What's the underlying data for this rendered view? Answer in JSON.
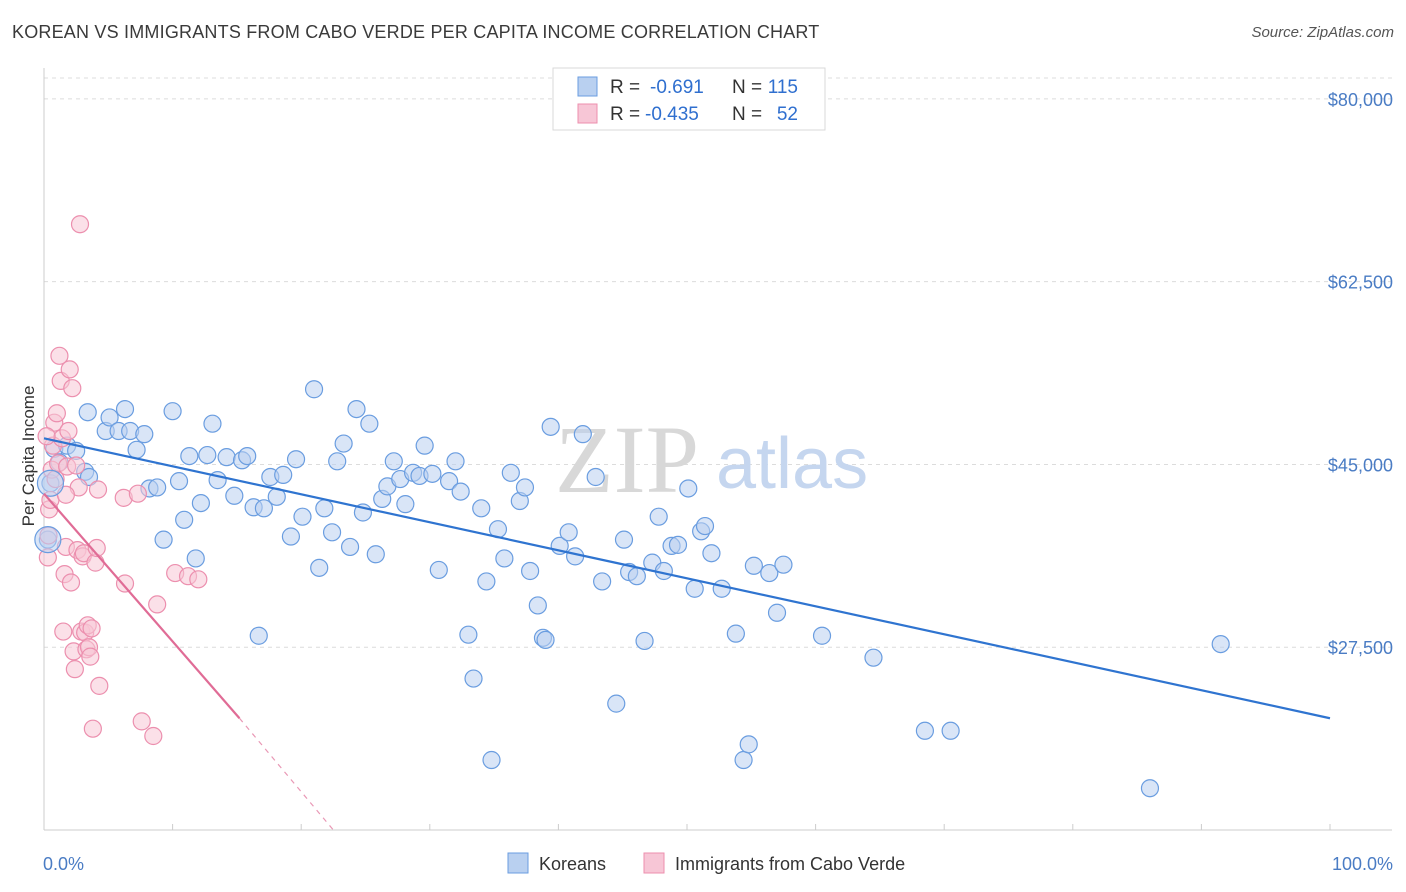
{
  "title": "KOREAN VS IMMIGRANTS FROM CABO VERDE PER CAPITA INCOME CORRELATION CHART",
  "source": "Source: ZipAtlas.com",
  "watermark": {
    "zip": "ZIP",
    "atlas": "atlas"
  },
  "legend_top": [
    {
      "r_label": "R =",
      "r_value": "-0.691",
      "n_label": "N =",
      "n_value": "115",
      "color": "#7aa8e6",
      "fill": "#bcd3f3"
    },
    {
      "r_label": "R =",
      "r_value": "-0.435",
      "n_label": "N =",
      "n_value": "52",
      "color": "#eb8cab",
      "fill": "#f7c3d4"
    }
  ],
  "chart_data": {
    "type": "scatter",
    "title": "KOREAN VS IMMIGRANTS FROM CABO VERDE PER CAPITA INCOME CORRELATION CHART",
    "xlabel": "",
    "ylabel": "Per Capita Income",
    "xlim": [
      0,
      100
    ],
    "ylim": [
      10000,
      82000
    ],
    "x_tick_labels": [
      "0.0%",
      "100.0%"
    ],
    "y_ticks": [
      27500,
      45000,
      62500,
      80000
    ],
    "y_tick_labels": [
      "$27,500",
      "$45,000",
      "$62,500",
      "$80,000"
    ],
    "grid": true,
    "legend_position": "bottom",
    "series": [
      {
        "name": "Koreans",
        "color": "#6a9de0",
        "fill": "#b9d0f0",
        "line_color": "#2f74d0",
        "trend": {
          "x": [
            0,
            100
          ],
          "y": [
            47500,
            20700
          ]
        },
        "points": [
          [
            0.3,
            37800
          ],
          [
            0.5,
            43200
          ],
          [
            0.8,
            46500
          ],
          [
            1.2,
            45200
          ],
          [
            1.8,
            46800
          ],
          [
            2.5,
            46300
          ],
          [
            3.2,
            44300
          ],
          [
            3.5,
            43800
          ],
          [
            3.4,
            50000
          ],
          [
            4.8,
            48200
          ],
          [
            5.1,
            49500
          ],
          [
            5.8,
            48200
          ],
          [
            6.3,
            50300
          ],
          [
            6.7,
            48200
          ],
          [
            7.2,
            46400
          ],
          [
            7.8,
            47900
          ],
          [
            8.2,
            42700
          ],
          [
            8.8,
            42800
          ],
          [
            9.3,
            37800
          ],
          [
            10.0,
            50100
          ],
          [
            10.5,
            43400
          ],
          [
            10.9,
            39700
          ],
          [
            11.3,
            45800
          ],
          [
            11.8,
            36000
          ],
          [
            12.2,
            41300
          ],
          [
            12.7,
            45900
          ],
          [
            13.1,
            48900
          ],
          [
            13.5,
            43500
          ],
          [
            14.2,
            45700
          ],
          [
            14.8,
            42000
          ],
          [
            15.4,
            45400
          ],
          [
            15.8,
            45800
          ],
          [
            16.3,
            40900
          ],
          [
            16.7,
            28600
          ],
          [
            17.1,
            40800
          ],
          [
            17.6,
            43800
          ],
          [
            18.1,
            41900
          ],
          [
            18.6,
            44000
          ],
          [
            19.2,
            38100
          ],
          [
            19.6,
            45500
          ],
          [
            20.1,
            40000
          ],
          [
            21.0,
            52200
          ],
          [
            21.4,
            35100
          ],
          [
            21.8,
            40800
          ],
          [
            22.4,
            38500
          ],
          [
            22.8,
            45300
          ],
          [
            23.3,
            47000
          ],
          [
            23.8,
            37100
          ],
          [
            24.3,
            50300
          ],
          [
            24.8,
            40400
          ],
          [
            25.3,
            48900
          ],
          [
            25.8,
            36400
          ],
          [
            26.3,
            41700
          ],
          [
            26.7,
            42900
          ],
          [
            27.2,
            45300
          ],
          [
            27.7,
            43600
          ],
          [
            28.1,
            41200
          ],
          [
            28.7,
            44200
          ],
          [
            29.2,
            43900
          ],
          [
            29.6,
            46800
          ],
          [
            30.2,
            44100
          ],
          [
            30.7,
            34900
          ],
          [
            31.5,
            43400
          ],
          [
            32.0,
            45300
          ],
          [
            32.4,
            42400
          ],
          [
            33.0,
            28700
          ],
          [
            33.4,
            24500
          ],
          [
            34.0,
            40800
          ],
          [
            34.4,
            33800
          ],
          [
            34.8,
            16700
          ],
          [
            35.3,
            38800
          ],
          [
            35.8,
            36000
          ],
          [
            36.3,
            44200
          ],
          [
            37.0,
            41500
          ],
          [
            37.4,
            42800
          ],
          [
            37.8,
            34800
          ],
          [
            38.4,
            31500
          ],
          [
            38.8,
            28400
          ],
          [
            39.0,
            28200
          ],
          [
            39.4,
            48600
          ],
          [
            40.1,
            37200
          ],
          [
            40.8,
            38500
          ],
          [
            41.3,
            36200
          ],
          [
            41.9,
            47900
          ],
          [
            42.9,
            43800
          ],
          [
            43.4,
            33800
          ],
          [
            44.5,
            22100
          ],
          [
            45.1,
            37800
          ],
          [
            45.5,
            34700
          ],
          [
            46.1,
            34300
          ],
          [
            46.7,
            28100
          ],
          [
            47.3,
            35600
          ],
          [
            47.8,
            40000
          ],
          [
            48.2,
            34800
          ],
          [
            48.8,
            37200
          ],
          [
            49.3,
            37300
          ],
          [
            50.1,
            42700
          ],
          [
            50.6,
            33100
          ],
          [
            51.1,
            38600
          ],
          [
            51.4,
            39100
          ],
          [
            51.9,
            36500
          ],
          [
            52.7,
            33100
          ],
          [
            53.8,
            28800
          ],
          [
            54.4,
            16700
          ],
          [
            54.8,
            18200
          ],
          [
            55.2,
            35300
          ],
          [
            56.4,
            34600
          ],
          [
            57.0,
            30800
          ],
          [
            57.5,
            35400
          ],
          [
            60.5,
            28600
          ],
          [
            64.5,
            26500
          ],
          [
            68.5,
            19500
          ],
          [
            70.5,
            19500
          ],
          [
            86.0,
            14000
          ],
          [
            91.5,
            27800
          ]
        ]
      },
      {
        "name": "Immigrants from Cabo Verde",
        "color": "#ec8fae",
        "fill": "#f7c6d6",
        "line_color": "#e06c96",
        "trend": {
          "x": [
            0,
            15.2
          ],
          "y": [
            42200,
            20700
          ]
        },
        "trend_dashed": {
          "x": [
            15.2,
            22.5
          ],
          "y": [
            20700,
            10000
          ]
        },
        "points": [
          [
            0.3,
            36100
          ],
          [
            0.4,
            40700
          ],
          [
            0.5,
            41600
          ],
          [
            0.6,
            44500
          ],
          [
            0.7,
            46800
          ],
          [
            0.8,
            49000
          ],
          [
            0.9,
            43600
          ],
          [
            1.0,
            49900
          ],
          [
            1.1,
            45100
          ],
          [
            1.2,
            55400
          ],
          [
            1.3,
            53000
          ],
          [
            1.4,
            47500
          ],
          [
            1.5,
            29000
          ],
          [
            1.6,
            34500
          ],
          [
            1.7,
            37100
          ],
          [
            1.8,
            44800
          ],
          [
            1.9,
            48200
          ],
          [
            2.0,
            54100
          ],
          [
            2.1,
            33700
          ],
          [
            2.2,
            52300
          ],
          [
            2.3,
            27100
          ],
          [
            2.4,
            25400
          ],
          [
            2.5,
            44900
          ],
          [
            2.6,
            36800
          ],
          [
            2.7,
            42800
          ],
          [
            2.8,
            68000
          ],
          [
            2.9,
            29000
          ],
          [
            3.0,
            36200
          ],
          [
            3.1,
            36500
          ],
          [
            3.2,
            28900
          ],
          [
            3.3,
            27300
          ],
          [
            3.4,
            29600
          ],
          [
            3.5,
            27500
          ],
          [
            3.6,
            26600
          ],
          [
            3.7,
            29300
          ],
          [
            3.8,
            19700
          ],
          [
            4.0,
            35600
          ],
          [
            4.1,
            37000
          ],
          [
            4.2,
            42600
          ],
          [
            4.3,
            23800
          ],
          [
            6.2,
            41800
          ],
          [
            6.3,
            33600
          ],
          [
            7.3,
            42200
          ],
          [
            7.6,
            20400
          ],
          [
            8.5,
            19000
          ],
          [
            8.8,
            31600
          ],
          [
            10.2,
            34600
          ],
          [
            11.2,
            34300
          ],
          [
            12.0,
            34000
          ],
          [
            0.2,
            47700
          ],
          [
            0.35,
            38200
          ],
          [
            1.7,
            42100
          ]
        ]
      }
    ]
  }
}
